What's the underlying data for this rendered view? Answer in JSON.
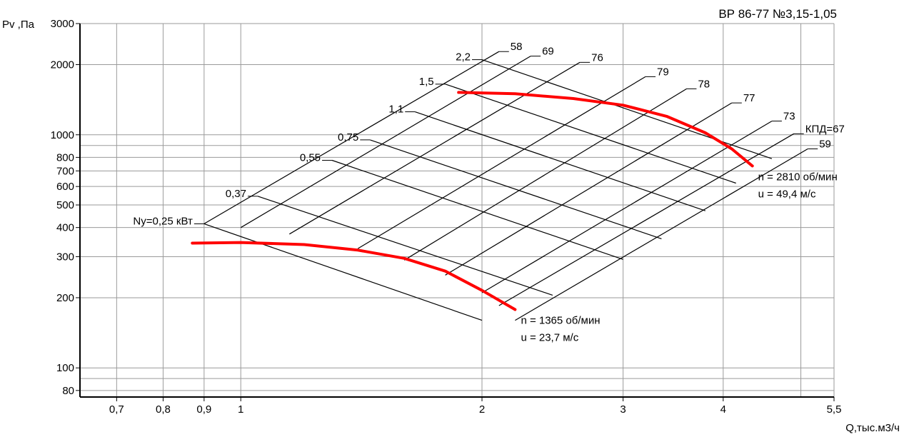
{
  "chart_data": {
    "type": "line",
    "title": "ВР 86-77 №3,15-1,05",
    "ylabel": "Pv ,Па",
    "xlabel": "Q,тыс.м3/ч",
    "x_scale": "log",
    "y_scale": "log",
    "xlim": [
      0.63,
      5.5
    ],
    "ylim": [
      75,
      3000
    ],
    "x_ticks": [
      {
        "v": 0.7,
        "label": "0,7"
      },
      {
        "v": 0.8,
        "label": "0,8"
      },
      {
        "v": 0.9,
        "label": "0,9"
      },
      {
        "v": 1,
        "label": "1"
      },
      {
        "v": 2,
        "label": "2"
      },
      {
        "v": 3,
        "label": "3"
      },
      {
        "v": 4,
        "label": "4"
      },
      {
        "v": 5.5,
        "label": "5,5"
      }
    ],
    "x_minor_grid": [
      5
    ],
    "y_ticks": [
      {
        "v": 80,
        "label": "80"
      },
      {
        "v": 100,
        "label": "100"
      },
      {
        "v": 200,
        "label": "200"
      },
      {
        "v": 300,
        "label": "300"
      },
      {
        "v": 400,
        "label": "400"
      },
      {
        "v": 500,
        "label": "500"
      },
      {
        "v": 600,
        "label": "600"
      },
      {
        "v": 700,
        "label": "700"
      },
      {
        "v": 800,
        "label": "800"
      },
      {
        "v": 1000,
        "label": "1000"
      },
      {
        "v": 2000,
        "label": "2000"
      },
      {
        "v": 3000,
        "label": "3000"
      }
    ],
    "y_minor_grid": [
      90,
      900
    ],
    "power_lines": [
      {
        "label": "Ny=0,25 кВт",
        "points": [
          [
            0.9,
            415
          ],
          [
            2.0,
            160
          ]
        ]
      },
      {
        "label": "0,37",
        "points": [
          [
            1.05,
            545
          ],
          [
            2.45,
            205
          ]
        ]
      },
      {
        "label": "0,55",
        "points": [
          [
            1.3,
            777
          ],
          [
            3.0,
            292
          ]
        ]
      },
      {
        "label": "0,75",
        "points": [
          [
            1.45,
            951
          ],
          [
            3.35,
            358
          ]
        ]
      },
      {
        "label": "1,1",
        "points": [
          [
            1.65,
            1255
          ],
          [
            3.8,
            472
          ]
        ]
      },
      {
        "label": "1,5",
        "points": [
          [
            1.8,
            1649
          ],
          [
            4.15,
            620
          ]
        ]
      },
      {
        "label": "2,2",
        "points": [
          [
            2.0,
            2100
          ],
          [
            4.6,
            790
          ]
        ]
      }
    ],
    "efficiency_lines": [
      {
        "label": "58",
        "points": [
          [
            0.9,
            415
          ],
          [
            2.1,
            2275
          ]
        ]
      },
      {
        "label": "69",
        "points": [
          [
            1.0,
            400
          ],
          [
            2.3,
            2175
          ]
        ]
      },
      {
        "label": "76",
        "points": [
          [
            1.15,
            375
          ],
          [
            2.65,
            2045
          ]
        ]
      },
      {
        "label": "79",
        "points": [
          [
            1.4,
            325
          ],
          [
            3.2,
            1775
          ]
        ]
      },
      {
        "label": "78",
        "points": [
          [
            1.6,
            290
          ],
          [
            3.6,
            1575
          ]
        ]
      },
      {
        "label": "77",
        "points": [
          [
            1.8,
            250
          ],
          [
            4.1,
            1370
          ]
        ]
      },
      {
        "label": "73",
        "points": [
          [
            2.0,
            210
          ],
          [
            4.6,
            1145
          ]
        ]
      },
      {
        "label": "КПД=67",
        "points": [
          [
            2.1,
            185
          ],
          [
            4.9,
            1010
          ]
        ]
      },
      {
        "label": "59",
        "points": [
          [
            2.2,
            160
          ],
          [
            5.1,
            870
          ]
        ]
      }
    ],
    "performance_curves": [
      {
        "label_lines": [
          "n = 1365 об/мин",
          "u = 23,7 м/с"
        ],
        "color": "#ff0000",
        "points": [
          [
            0.87,
            343
          ],
          [
            1.0,
            345
          ],
          [
            1.2,
            338
          ],
          [
            1.4,
            320
          ],
          [
            1.6,
            295
          ],
          [
            1.8,
            260
          ],
          [
            2.0,
            215
          ],
          [
            2.2,
            178
          ]
        ]
      },
      {
        "label_lines": [
          "n = 2810 об/мин",
          "u = 49,4 м/с"
        ],
        "color": "#ff0000",
        "points": [
          [
            1.87,
            1520
          ],
          [
            2.2,
            1500
          ],
          [
            2.6,
            1430
          ],
          [
            3.0,
            1340
          ],
          [
            3.4,
            1200
          ],
          [
            3.8,
            1020
          ],
          [
            4.1,
            870
          ],
          [
            4.35,
            735
          ]
        ]
      }
    ]
  }
}
